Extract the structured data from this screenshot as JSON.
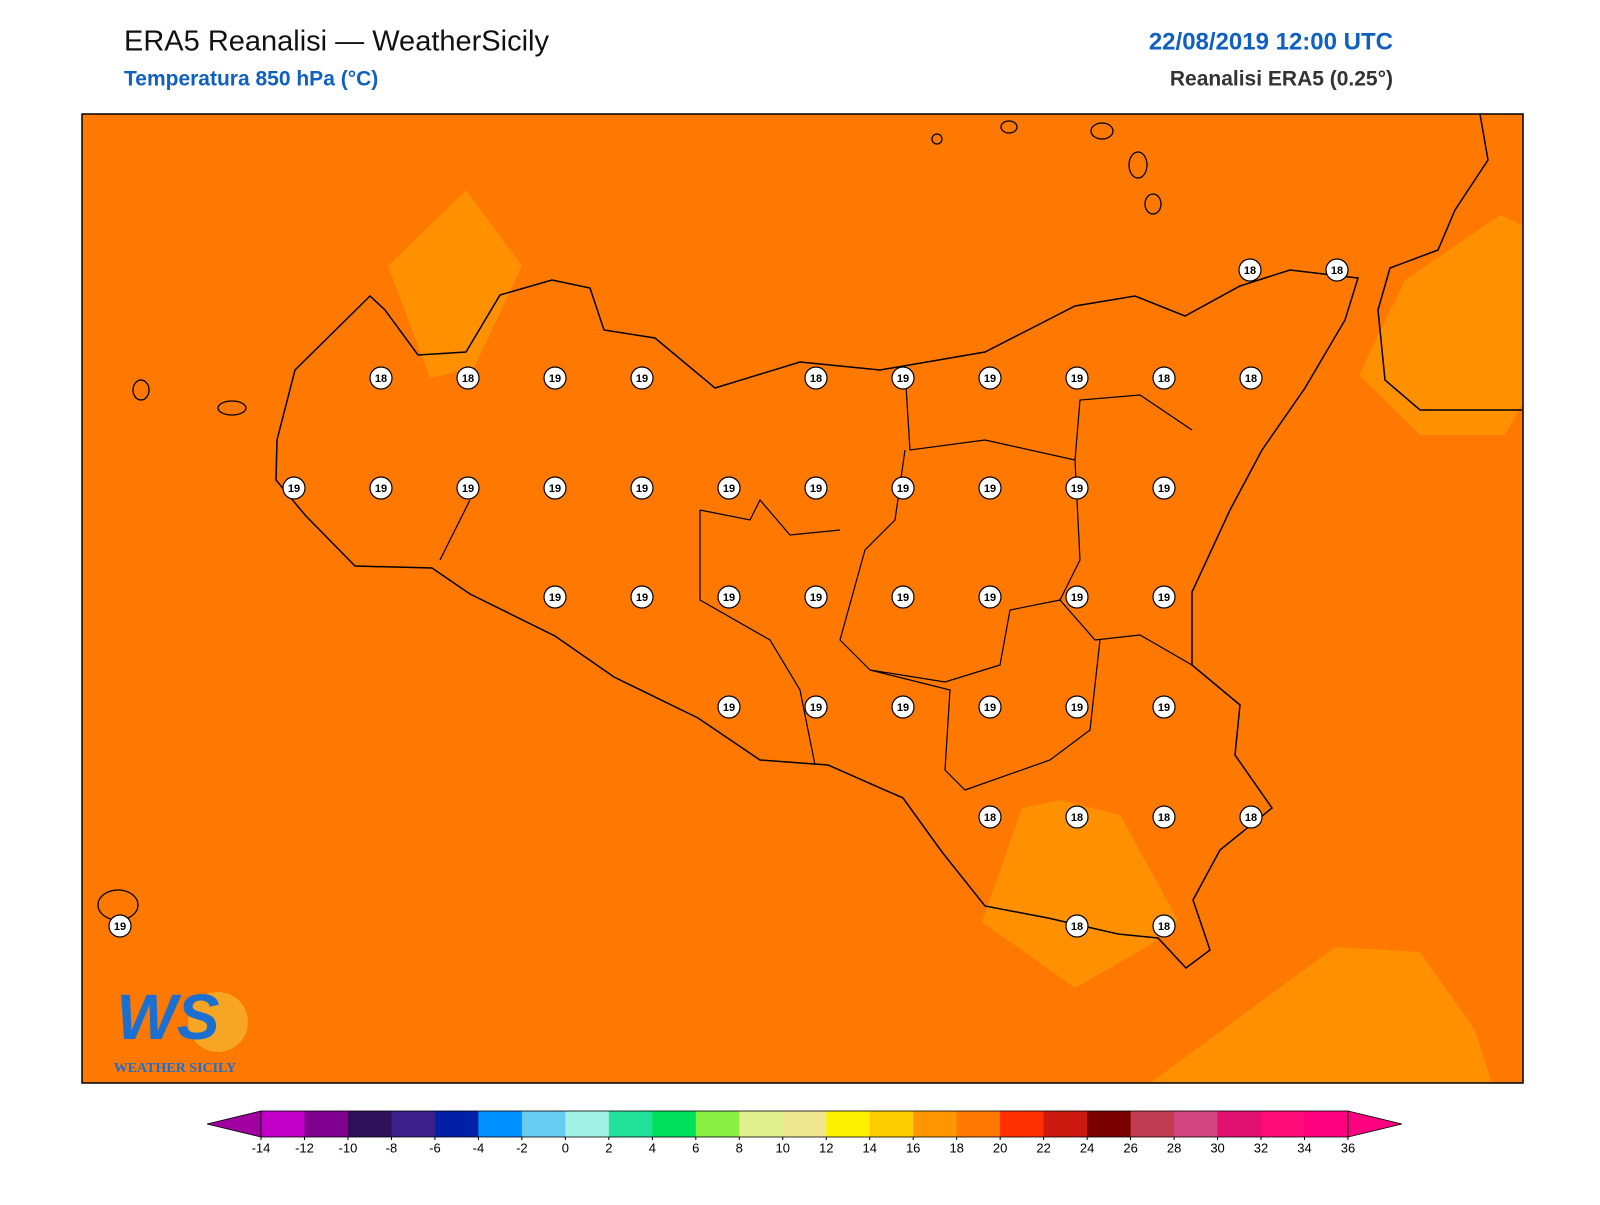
{
  "header": {
    "title": "ERA5 Reanalisi — WeatherSicily",
    "subtitle": "Temperatura 850 hPa (°C)",
    "datetime": "22/08/2019 12:00 UTC",
    "source": "Reanalisi ERA5 (0.25°)"
  },
  "stations": {
    "values": [
      18,
      18,
      18,
      18,
      19,
      19,
      18,
      19,
      19,
      19,
      18,
      18,
      19,
      19,
      19,
      19,
      19,
      19,
      19,
      19,
      19,
      19,
      19,
      19,
      19,
      19,
      19,
      19,
      19,
      19,
      19,
      19,
      19,
      19,
      19,
      19,
      19,
      18,
      18,
      18,
      18,
      18,
      18,
      19
    ]
  },
  "colorbar": {
    "ticks": [
      -14,
      -12,
      -10,
      -8,
      -6,
      -4,
      -2,
      0,
      2,
      4,
      6,
      8,
      10,
      12,
      14,
      16,
      18,
      20,
      22,
      24,
      26,
      28,
      30,
      32,
      34,
      36
    ],
    "colors": [
      "#c000c8",
      "#800090",
      "#30105a",
      "#3a2088",
      "#0020a8",
      "#0090ff",
      "#66ccf2",
      "#a0f2e6",
      "#20e09a",
      "#00e05a",
      "#88f040",
      "#e0f08c",
      "#f0e690",
      "#fff000",
      "#ffcc00",
      "#ff9500",
      "#ff7800",
      "#ff3000",
      "#cc1a10",
      "#7a0000",
      "#c03c50",
      "#d04480",
      "#e01070",
      "#ff0a78",
      "#ff0080"
    ],
    "under": "#a000a0",
    "over": "#ff0080"
  },
  "logo": {
    "mark": "WS",
    "text": "WEATHER SICILY"
  }
}
